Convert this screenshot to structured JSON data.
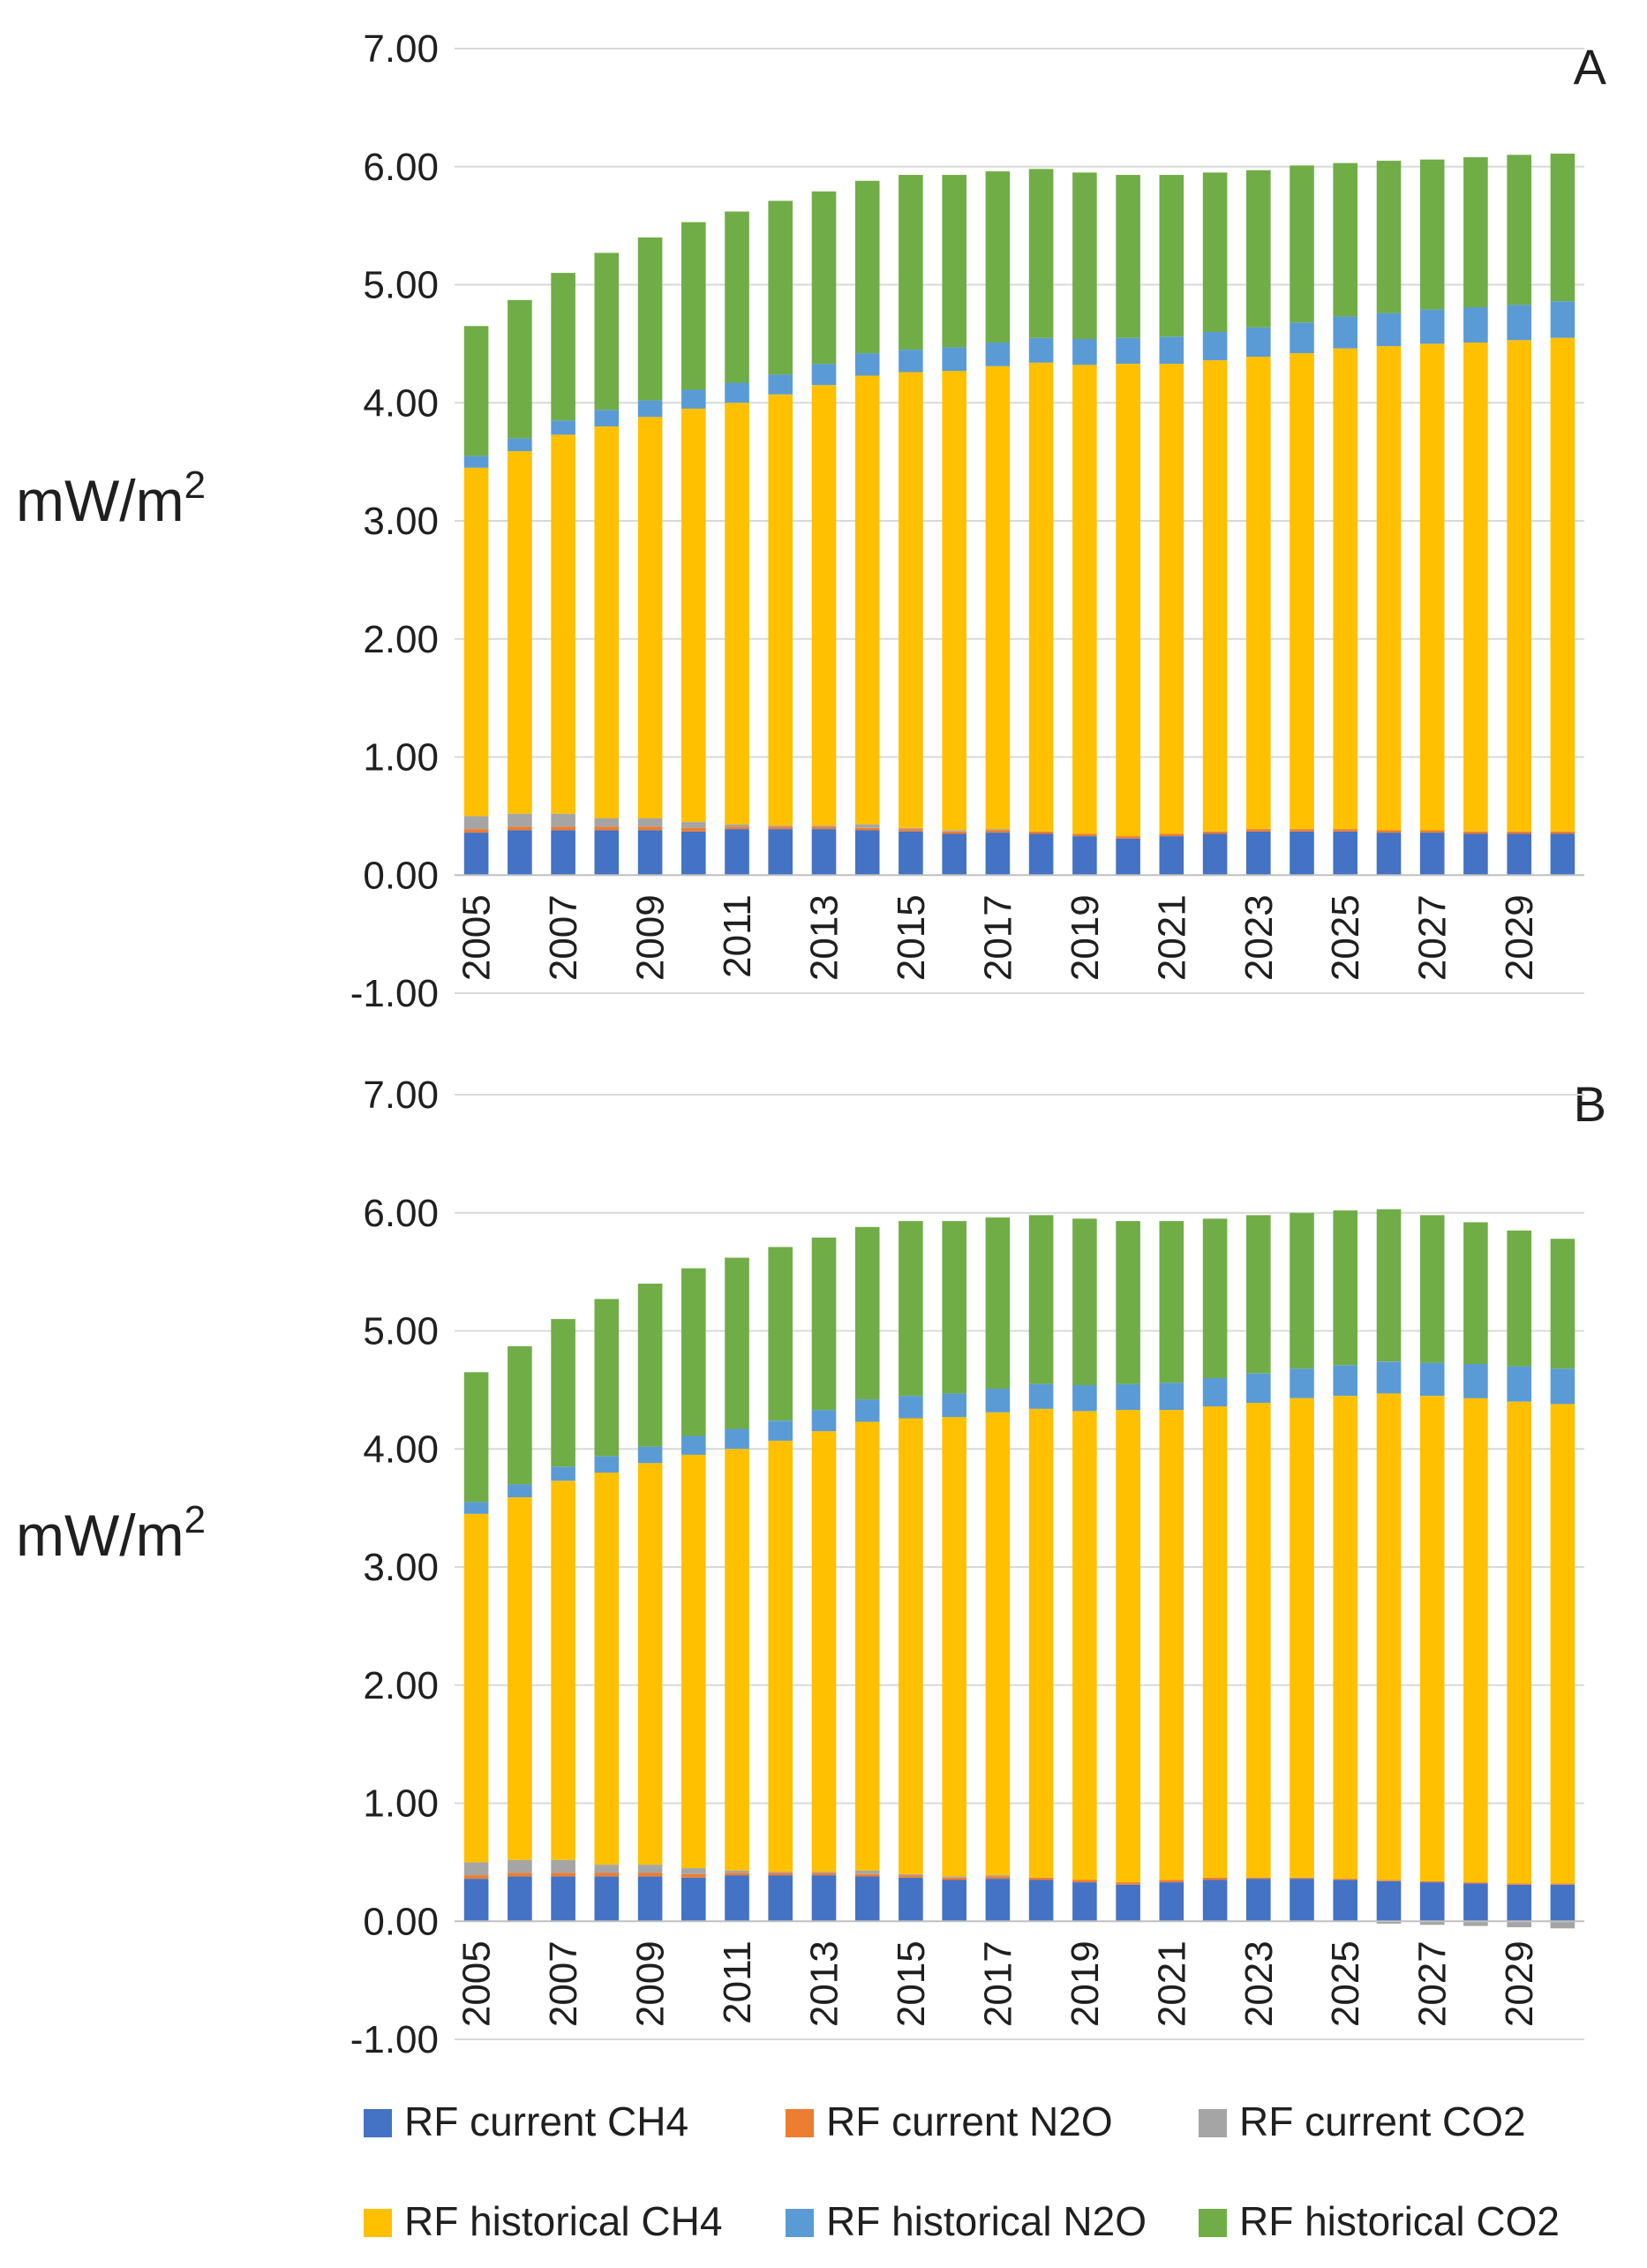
{
  "legend": [
    {
      "key": "rf_current_ch4",
      "label": "RF current CH4",
      "color": "#4472C4"
    },
    {
      "key": "rf_current_n2o",
      "label": "RF current N2O",
      "color": "#ED7D31"
    },
    {
      "key": "rf_current_co2",
      "label": "RF current CO2",
      "color": "#A5A5A5"
    },
    {
      "key": "rf_historical_ch4",
      "label": "RF historical CH4",
      "color": "#FFC000"
    },
    {
      "key": "rf_historical_n2o",
      "label": "RF historical N2O",
      "color": "#5B9BD5"
    },
    {
      "key": "rf_historical_co2",
      "label": "RF historical CO2",
      "color": "#70AD47"
    }
  ],
  "chart_data": [
    {
      "panel": "A",
      "type": "bar",
      "stacked": true,
      "ylabel": "mW/m",
      "ylabel_sup": "2",
      "ylim": [
        -1,
        7
      ],
      "ytick_labels": [
        "-1.00",
        "0.00",
        "1.00",
        "2.00",
        "3.00",
        "4.00",
        "5.00",
        "6.00",
        "7.00"
      ],
      "ytick_values": [
        -1,
        0,
        1,
        2,
        3,
        4,
        5,
        6,
        7
      ],
      "grid": true,
      "categories": [
        "2005",
        "2006",
        "2007",
        "2008",
        "2009",
        "2010",
        "2011",
        "2012",
        "2013",
        "2014",
        "2015",
        "2016",
        "2017",
        "2018",
        "2019",
        "2020",
        "2021",
        "2022",
        "2023",
        "2024",
        "2025",
        "2026",
        "2027",
        "2028",
        "2029",
        "2030"
      ],
      "xtick_labels": [
        "2005",
        "2007",
        "2009",
        "2011",
        "2013",
        "2015",
        "2017",
        "2019",
        "2021",
        "2023",
        "2025",
        "2027",
        "2029"
      ],
      "series": [
        {
          "key": "rf_current_ch4",
          "name": "RF current CH4",
          "values": [
            0.36,
            0.38,
            0.38,
            0.38,
            0.38,
            0.37,
            0.39,
            0.39,
            0.39,
            0.38,
            0.37,
            0.35,
            0.36,
            0.35,
            0.33,
            0.31,
            0.33,
            0.35,
            0.37,
            0.37,
            0.37,
            0.36,
            0.36,
            0.35,
            0.35,
            0.35
          ]
        },
        {
          "key": "rf_current_n2o",
          "name": "RF current N2O",
          "values": [
            0.03,
            0.03,
            0.03,
            0.03,
            0.03,
            0.03,
            0.02,
            0.02,
            0.02,
            0.02,
            0.02,
            0.02,
            0.02,
            0.02,
            0.02,
            0.02,
            0.02,
            0.02,
            0.02,
            0.02,
            0.02,
            0.02,
            0.02,
            0.02,
            0.02,
            0.02
          ]
        },
        {
          "key": "rf_current_co2",
          "name": "RF current CO2",
          "values": [
            0.11,
            0.11,
            0.11,
            0.07,
            0.07,
            0.05,
            0.02,
            0.01,
            0.01,
            0.03,
            0.01,
            0.01,
            0.01,
            0.0,
            0.0,
            0.0,
            0.0,
            0.0,
            0.0,
            0.0,
            0.0,
            0.0,
            0.0,
            0.0,
            0.0,
            0.0
          ]
        },
        {
          "key": "rf_historical_ch4",
          "name": "RF historical CH4",
          "values": [
            2.95,
            3.07,
            3.21,
            3.32,
            3.4,
            3.5,
            3.57,
            3.65,
            3.73,
            3.8,
            3.86,
            3.89,
            3.92,
            3.97,
            3.97,
            4.0,
            3.98,
            3.99,
            4.0,
            4.03,
            4.07,
            4.1,
            4.12,
            4.14,
            4.16,
            4.18
          ]
        },
        {
          "key": "rf_historical_n2o",
          "name": "RF historical N2O",
          "values": [
            0.1,
            0.11,
            0.12,
            0.14,
            0.14,
            0.16,
            0.17,
            0.17,
            0.18,
            0.19,
            0.19,
            0.2,
            0.2,
            0.21,
            0.22,
            0.22,
            0.23,
            0.24,
            0.25,
            0.26,
            0.27,
            0.28,
            0.29,
            0.3,
            0.3,
            0.31
          ]
        },
        {
          "key": "rf_historical_co2",
          "name": "RF historical CO2",
          "values": [
            1.1,
            1.17,
            1.25,
            1.33,
            1.38,
            1.42,
            1.45,
            1.47,
            1.46,
            1.46,
            1.48,
            1.46,
            1.45,
            1.43,
            1.41,
            1.38,
            1.37,
            1.35,
            1.33,
            1.33,
            1.3,
            1.29,
            1.27,
            1.27,
            1.27,
            1.25
          ]
        }
      ]
    },
    {
      "panel": "B",
      "type": "bar",
      "stacked": true,
      "ylabel": "mW/m",
      "ylabel_sup": "2",
      "ylim": [
        -1,
        7
      ],
      "ytick_labels": [
        "-1.00",
        "0.00",
        "1.00",
        "2.00",
        "3.00",
        "4.00",
        "5.00",
        "6.00",
        "7.00"
      ],
      "ytick_values": [
        -1,
        0,
        1,
        2,
        3,
        4,
        5,
        6,
        7
      ],
      "grid": true,
      "categories": [
        "2005",
        "2006",
        "2007",
        "2008",
        "2009",
        "2010",
        "2011",
        "2012",
        "2013",
        "2014",
        "2015",
        "2016",
        "2017",
        "2018",
        "2019",
        "2020",
        "2021",
        "2022",
        "2023",
        "2024",
        "2025",
        "2026",
        "2027",
        "2028",
        "2029",
        "2030"
      ],
      "xtick_labels": [
        "2005",
        "2007",
        "2009",
        "2011",
        "2013",
        "2015",
        "2017",
        "2019",
        "2021",
        "2023",
        "2025",
        "2027",
        "2029"
      ],
      "series": [
        {
          "key": "rf_current_ch4",
          "name": "RF current CH4",
          "values": [
            0.36,
            0.38,
            0.38,
            0.38,
            0.38,
            0.37,
            0.39,
            0.39,
            0.39,
            0.38,
            0.37,
            0.35,
            0.36,
            0.35,
            0.33,
            0.31,
            0.33,
            0.35,
            0.36,
            0.36,
            0.35,
            0.34,
            0.33,
            0.32,
            0.31,
            0.31
          ]
        },
        {
          "key": "rf_current_n2o",
          "name": "RF current N2O",
          "values": [
            0.03,
            0.03,
            0.03,
            0.03,
            0.03,
            0.03,
            0.02,
            0.02,
            0.02,
            0.02,
            0.02,
            0.02,
            0.02,
            0.02,
            0.02,
            0.02,
            0.02,
            0.02,
            0.01,
            0.01,
            0.01,
            0.01,
            0.01,
            0.01,
            0.01,
            0.01
          ]
        },
        {
          "key": "rf_current_co2",
          "name": "RF current CO2",
          "values": [
            0.11,
            0.11,
            0.11,
            0.07,
            0.07,
            0.05,
            0.02,
            0.01,
            0.01,
            0.03,
            0.01,
            0.01,
            0.01,
            0.0,
            0.0,
            0.0,
            0.0,
            0.0,
            0.0,
            0.0,
            0.0,
            -0.02,
            -0.03,
            -0.04,
            -0.05,
            -0.06
          ]
        },
        {
          "key": "rf_historical_ch4",
          "name": "RF historical CH4",
          "values": [
            2.95,
            3.07,
            3.21,
            3.32,
            3.4,
            3.5,
            3.57,
            3.65,
            3.73,
            3.8,
            3.86,
            3.89,
            3.92,
            3.97,
            3.97,
            4.0,
            3.98,
            3.99,
            4.02,
            4.06,
            4.09,
            4.12,
            4.11,
            4.1,
            4.08,
            4.06
          ]
        },
        {
          "key": "rf_historical_n2o",
          "name": "RF historical N2O",
          "values": [
            0.1,
            0.11,
            0.12,
            0.14,
            0.14,
            0.16,
            0.17,
            0.17,
            0.18,
            0.19,
            0.19,
            0.2,
            0.2,
            0.21,
            0.22,
            0.22,
            0.23,
            0.24,
            0.25,
            0.25,
            0.26,
            0.27,
            0.28,
            0.29,
            0.3,
            0.3
          ]
        },
        {
          "key": "rf_historical_co2",
          "name": "RF historical CO2",
          "values": [
            1.1,
            1.17,
            1.25,
            1.33,
            1.38,
            1.42,
            1.45,
            1.47,
            1.46,
            1.46,
            1.48,
            1.46,
            1.45,
            1.43,
            1.41,
            1.38,
            1.37,
            1.35,
            1.34,
            1.32,
            1.31,
            1.29,
            1.25,
            1.2,
            1.15,
            1.1
          ]
        }
      ]
    }
  ]
}
